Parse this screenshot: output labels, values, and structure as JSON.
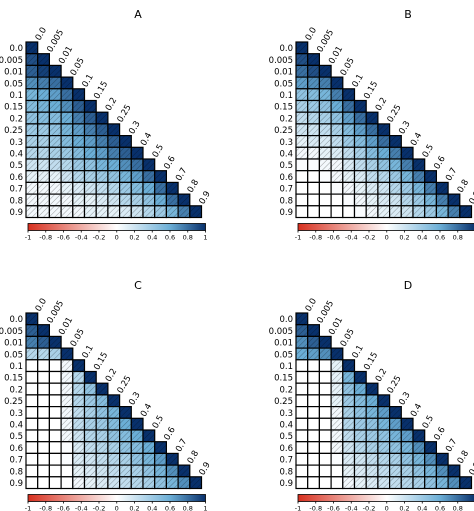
{
  "chart_data": {
    "type": "heatmap",
    "labels": [
      "0.0",
      "0.005",
      "0.01",
      "0.05",
      "0.1",
      "0.15",
      "0.2",
      "0.25",
      "0.3",
      "0.4",
      "0.5",
      "0.6",
      "0.7",
      "0.8",
      "0.9"
    ],
    "colorbar": {
      "ticks": [
        "-1",
        "-0.8",
        "-0.6",
        "-0.4",
        "-0.2",
        "0",
        "0.2",
        "0.4",
        "0.6",
        "0.8",
        "1"
      ],
      "range": [
        -1,
        1
      ],
      "colors": {
        "negative": "#d7301f",
        "zero": "#ffffff",
        "positive": "#08306b"
      }
    },
    "panels": [
      {
        "title": "A",
        "row_values": [
          [
            1.0
          ],
          [
            0.9,
            1.0
          ],
          [
            0.85,
            0.95,
            1.0
          ],
          [
            0.7,
            0.75,
            0.8,
            1.0
          ],
          [
            0.55,
            0.6,
            0.65,
            0.8,
            1.0
          ],
          [
            0.5,
            0.55,
            0.6,
            0.7,
            0.85,
            1.0
          ],
          [
            0.45,
            0.5,
            0.5,
            0.6,
            0.75,
            0.85,
            1.0
          ],
          [
            0.4,
            0.4,
            0.45,
            0.55,
            0.65,
            0.75,
            0.85,
            1.0
          ],
          [
            0.35,
            0.35,
            0.4,
            0.5,
            0.6,
            0.65,
            0.75,
            0.85,
            1.0
          ],
          [
            0.3,
            0.3,
            0.35,
            0.4,
            0.5,
            0.6,
            0.65,
            0.75,
            0.85,
            1.0
          ],
          [
            0.2,
            0.2,
            0.25,
            0.3,
            0.4,
            0.45,
            0.55,
            0.6,
            0.7,
            0.8,
            1.0
          ],
          [
            0.1,
            0.1,
            0.1,
            0.2,
            0.3,
            0.35,
            0.4,
            0.45,
            0.55,
            0.65,
            0.8,
            1.0
          ],
          [
            0.05,
            0.05,
            0.05,
            0.1,
            0.15,
            0.2,
            0.25,
            0.3,
            0.4,
            0.5,
            0.6,
            0.8,
            1.0
          ],
          [
            0.05,
            0.05,
            0.05,
            0.05,
            0.1,
            0.1,
            0.15,
            0.2,
            0.3,
            0.35,
            0.45,
            0.6,
            0.8,
            1.0
          ],
          [
            0.05,
            0.05,
            0.05,
            0.05,
            0.05,
            0.1,
            0.1,
            0.1,
            0.15,
            0.2,
            0.3,
            0.4,
            0.55,
            0.75,
            1.0
          ]
        ]
      },
      {
        "title": "B",
        "row_values": [
          [
            1.0
          ],
          [
            0.9,
            1.0
          ],
          [
            0.8,
            0.9,
            1.0
          ],
          [
            0.65,
            0.7,
            0.75,
            1.0
          ],
          [
            0.45,
            0.5,
            0.55,
            0.75,
            1.0
          ],
          [
            0.35,
            0.4,
            0.45,
            0.6,
            0.8,
            1.0
          ],
          [
            0.25,
            0.3,
            0.35,
            0.45,
            0.65,
            0.8,
            1.0
          ],
          [
            0.2,
            0.2,
            0.25,
            0.35,
            0.5,
            0.65,
            0.8,
            1.0
          ],
          [
            0.1,
            0.15,
            0.15,
            0.25,
            0.4,
            0.5,
            0.65,
            0.8,
            1.0
          ],
          [
            0.05,
            0.05,
            0.1,
            0.15,
            0.25,
            0.35,
            0.5,
            0.6,
            0.75,
            1.0
          ],
          [
            0.02,
            0.02,
            0.05,
            0.05,
            0.15,
            0.25,
            0.35,
            0.45,
            0.55,
            0.75,
            1.0
          ],
          [
            0.0,
            0.0,
            0.02,
            0.05,
            0.1,
            0.15,
            0.25,
            0.3,
            0.4,
            0.55,
            0.75,
            1.0
          ],
          [
            0.0,
            0.0,
            0.0,
            0.02,
            0.05,
            0.1,
            0.15,
            0.2,
            0.3,
            0.4,
            0.55,
            0.75,
            1.0
          ],
          [
            0.0,
            0.0,
            0.0,
            0.0,
            0.02,
            0.05,
            0.1,
            0.15,
            0.2,
            0.3,
            0.4,
            0.55,
            0.75,
            1.0
          ],
          [
            0.0,
            0.0,
            0.0,
            0.0,
            0.0,
            0.02,
            0.05,
            0.1,
            0.15,
            0.2,
            0.3,
            0.4,
            0.55,
            0.75,
            1.0
          ]
        ]
      },
      {
        "title": "C",
        "row_values": [
          [
            1.0
          ],
          [
            0.85,
            1.0
          ],
          [
            0.75,
            0.85,
            1.0
          ],
          [
            0.3,
            0.3,
            0.35,
            1.0
          ],
          [
            0.0,
            0.0,
            0.0,
            0.05,
            1.0
          ],
          [
            0.0,
            0.0,
            0.0,
            0.05,
            0.3,
            1.0
          ],
          [
            0.0,
            0.0,
            0.0,
            0.05,
            0.3,
            0.45,
            1.0
          ],
          [
            0.0,
            0.0,
            0.0,
            0.05,
            0.3,
            0.4,
            0.5,
            1.0
          ],
          [
            0.0,
            0.0,
            0.0,
            0.05,
            0.25,
            0.35,
            0.45,
            0.55,
            1.0
          ],
          [
            0.0,
            0.0,
            0.0,
            0.05,
            0.25,
            0.35,
            0.4,
            0.5,
            0.6,
            1.0
          ],
          [
            0.0,
            0.0,
            0.0,
            0.05,
            0.2,
            0.3,
            0.35,
            0.45,
            0.5,
            0.6,
            1.0
          ],
          [
            0.0,
            0.0,
            0.0,
            0.02,
            0.15,
            0.25,
            0.3,
            0.35,
            0.45,
            0.5,
            0.6,
            1.0
          ],
          [
            0.0,
            0.0,
            0.0,
            0.02,
            0.15,
            0.2,
            0.25,
            0.3,
            0.35,
            0.45,
            0.55,
            0.65,
            1.0
          ],
          [
            0.0,
            0.0,
            0.0,
            0.0,
            0.1,
            0.15,
            0.2,
            0.25,
            0.3,
            0.35,
            0.45,
            0.55,
            0.7,
            1.0
          ],
          [
            0.0,
            0.0,
            0.0,
            0.0,
            0.05,
            0.1,
            0.15,
            0.2,
            0.25,
            0.3,
            0.35,
            0.45,
            0.55,
            0.7,
            1.0
          ]
        ]
      },
      {
        "title": "D",
        "row_values": [
          [
            1.0
          ],
          [
            0.85,
            1.0
          ],
          [
            0.7,
            0.85,
            1.0
          ],
          [
            0.6,
            0.65,
            0.7,
            1.0
          ],
          [
            0.0,
            0.0,
            0.0,
            0.1,
            1.0
          ],
          [
            0.0,
            0.0,
            0.0,
            0.1,
            0.55,
            1.0
          ],
          [
            0.0,
            0.0,
            0.0,
            0.1,
            0.45,
            0.6,
            1.0
          ],
          [
            0.0,
            0.0,
            0.0,
            0.1,
            0.4,
            0.5,
            0.6,
            1.0
          ],
          [
            0.0,
            0.0,
            0.0,
            0.05,
            0.35,
            0.45,
            0.55,
            0.65,
            1.0
          ],
          [
            0.0,
            0.0,
            0.0,
            0.05,
            0.3,
            0.4,
            0.45,
            0.55,
            0.65,
            1.0
          ],
          [
            0.0,
            0.0,
            0.0,
            0.05,
            0.25,
            0.35,
            0.4,
            0.45,
            0.55,
            0.65,
            1.0
          ],
          [
            0.0,
            0.0,
            0.0,
            0.05,
            0.2,
            0.3,
            0.35,
            0.4,
            0.45,
            0.55,
            0.7,
            1.0
          ],
          [
            0.0,
            0.0,
            0.0,
            0.02,
            0.15,
            0.2,
            0.25,
            0.3,
            0.35,
            0.45,
            0.55,
            0.7,
            1.0
          ],
          [
            0.0,
            0.0,
            0.0,
            0.0,
            0.1,
            0.15,
            0.2,
            0.25,
            0.3,
            0.35,
            0.45,
            0.55,
            0.7,
            1.0
          ],
          [
            0.0,
            0.0,
            0.0,
            0.0,
            0.05,
            0.1,
            0.15,
            0.2,
            0.25,
            0.3,
            0.35,
            0.45,
            0.55,
            0.7,
            1.0
          ]
        ]
      }
    ]
  }
}
